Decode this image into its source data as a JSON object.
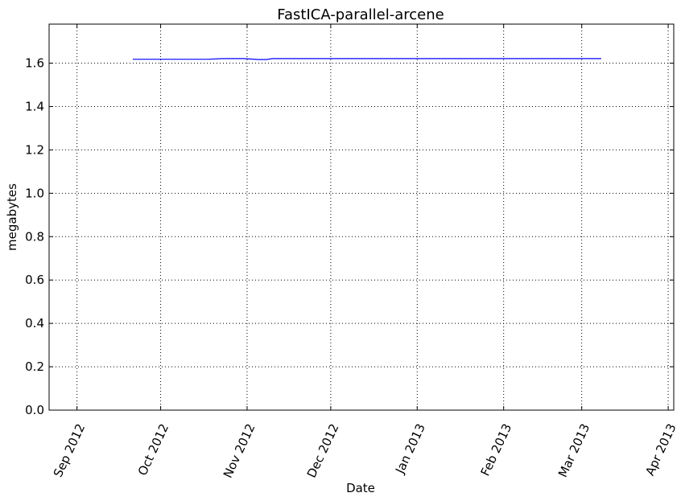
{
  "chart_data": {
    "type": "line",
    "title": "FastICA-parallel-arcene",
    "xlabel": "Date",
    "ylabel": "megabytes",
    "x_axis_type": "date",
    "xlim": [
      "2012-08-22",
      "2013-04-03"
    ],
    "ylim": [
      0.0,
      1.78
    ],
    "x_ticks": [
      {
        "date": "2012-09-01",
        "label": "Sep 2012"
      },
      {
        "date": "2012-10-01",
        "label": "Oct 2012"
      },
      {
        "date": "2012-11-01",
        "label": "Nov 2012"
      },
      {
        "date": "2012-12-01",
        "label": "Dec 2012"
      },
      {
        "date": "2013-01-01",
        "label": "Jan 2013"
      },
      {
        "date": "2013-02-01",
        "label": "Feb 2013"
      },
      {
        "date": "2013-03-01",
        "label": "Mar 2013"
      },
      {
        "date": "2013-04-01",
        "label": "Apr 2013"
      }
    ],
    "y_ticks": [
      {
        "value": 0.0,
        "label": "0.0"
      },
      {
        "value": 0.2,
        "label": "0.2"
      },
      {
        "value": 0.4,
        "label": "0.4"
      },
      {
        "value": 0.6,
        "label": "0.6"
      },
      {
        "value": 0.8,
        "label": "0.8"
      },
      {
        "value": 1.0,
        "label": "1.0"
      },
      {
        "value": 1.2,
        "label": "1.2"
      },
      {
        "value": 1.4,
        "label": "1.4"
      },
      {
        "value": 1.6,
        "label": "1.6"
      }
    ],
    "grid": true,
    "series": [
      {
        "color": "#0000ff",
        "points": [
          {
            "x": "2012-09-21",
            "y": 1.618
          },
          {
            "x": "2012-10-07",
            "y": 1.618
          },
          {
            "x": "2012-10-18",
            "y": 1.618
          },
          {
            "x": "2012-10-23",
            "y": 1.621
          },
          {
            "x": "2012-10-31",
            "y": 1.621
          },
          {
            "x": "2012-11-05",
            "y": 1.617
          },
          {
            "x": "2012-11-08",
            "y": 1.617
          },
          {
            "x": "2012-11-10",
            "y": 1.621
          },
          {
            "x": "2012-11-25",
            "y": 1.621
          },
          {
            "x": "2012-12-15",
            "y": 1.621
          },
          {
            "x": "2013-01-10",
            "y": 1.621
          },
          {
            "x": "2013-02-05",
            "y": 1.621
          },
          {
            "x": "2013-02-25",
            "y": 1.621
          },
          {
            "x": "2013-03-08",
            "y": 1.621
          }
        ]
      }
    ]
  }
}
